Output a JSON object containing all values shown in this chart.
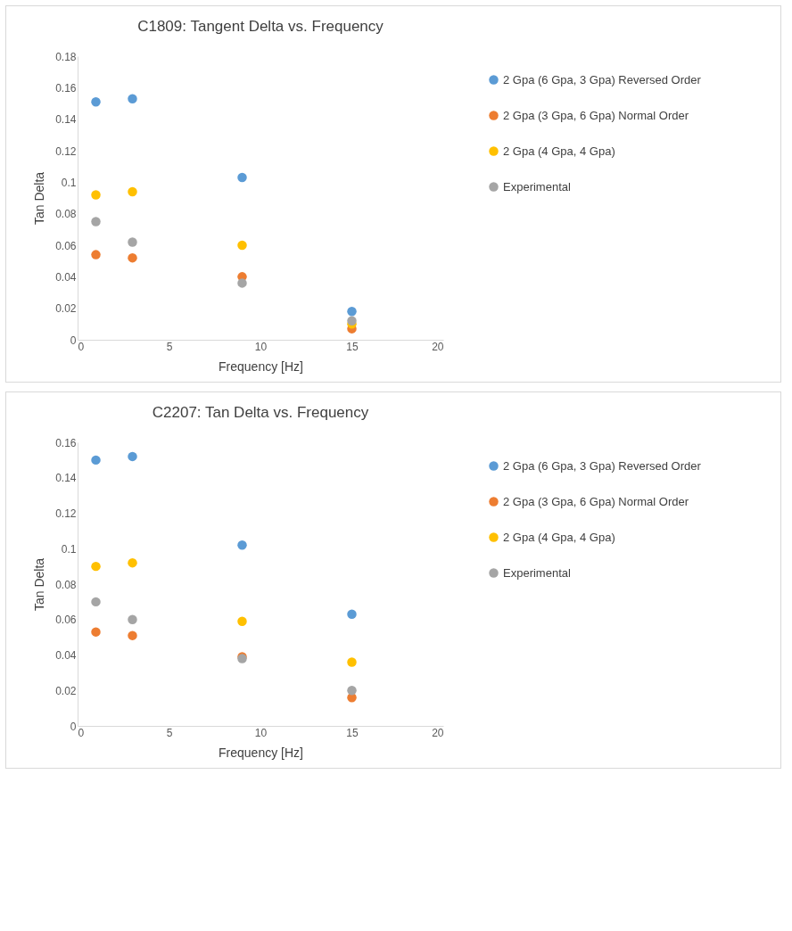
{
  "chart_data": [
    {
      "type": "scatter",
      "title": "C1809: Tangent Delta vs. Frequency",
      "xlabel": "Frequency [Hz]",
      "ylabel": "Tan Delta",
      "x": [
        1,
        3,
        9,
        15
      ],
      "xlim": [
        0,
        20
      ],
      "xticks": [
        0,
        5,
        10,
        15,
        20
      ],
      "ylim": [
        0,
        0.18
      ],
      "yticks": [
        0,
        0.02,
        0.04,
        0.06,
        0.08,
        0.1,
        0.12,
        0.14,
        0.16,
        0.18
      ],
      "grid": false,
      "legend": "right",
      "marker": "circle",
      "series": [
        {
          "name": "2 Gpa (6 Gpa, 3 Gpa) Reversed Order",
          "color": "#5b9bd5",
          "values": [
            0.151,
            0.153,
            0.103,
            0.018
          ]
        },
        {
          "name": "2 Gpa (3 Gpa, 6 Gpa) Normal Order",
          "color": "#ed7d31",
          "values": [
            0.054,
            0.052,
            0.04,
            0.007
          ]
        },
        {
          "name": "2 Gpa (4 Gpa, 4 Gpa)",
          "color": "#ffc000",
          "values": [
            0.092,
            0.094,
            0.06,
            0.01
          ]
        },
        {
          "name": "Experimental",
          "color": "#a5a5a5",
          "values": [
            0.075,
            0.062,
            0.036,
            0.012
          ]
        }
      ]
    },
    {
      "type": "scatter",
      "title": "C2207: Tan Delta vs. Frequency",
      "xlabel": "Frequency [Hz]",
      "ylabel": "Tan Delta",
      "x": [
        1,
        3,
        9,
        15
      ],
      "xlim": [
        0,
        20
      ],
      "xticks": [
        0,
        5,
        10,
        15,
        20
      ],
      "ylim": [
        0,
        0.16
      ],
      "yticks": [
        0,
        0.02,
        0.04,
        0.06,
        0.08,
        0.1,
        0.12,
        0.14,
        0.16
      ],
      "grid": false,
      "legend": "right",
      "marker": "circle",
      "series": [
        {
          "name": "2 Gpa (6 Gpa, 3 Gpa) Reversed Order",
          "color": "#5b9bd5",
          "values": [
            0.15,
            0.152,
            0.102,
            0.063
          ]
        },
        {
          "name": "2 Gpa (3 Gpa, 6 Gpa) Normal Order",
          "color": "#ed7d31",
          "values": [
            0.053,
            0.051,
            0.039,
            0.016
          ]
        },
        {
          "name": "2 Gpa (4 Gpa, 4 Gpa)",
          "color": "#ffc000",
          "values": [
            0.09,
            0.092,
            0.059,
            0.036
          ]
        },
        {
          "name": "Experimental",
          "color": "#a5a5a5",
          "values": [
            0.07,
            0.06,
            0.038,
            0.02
          ]
        }
      ]
    }
  ]
}
